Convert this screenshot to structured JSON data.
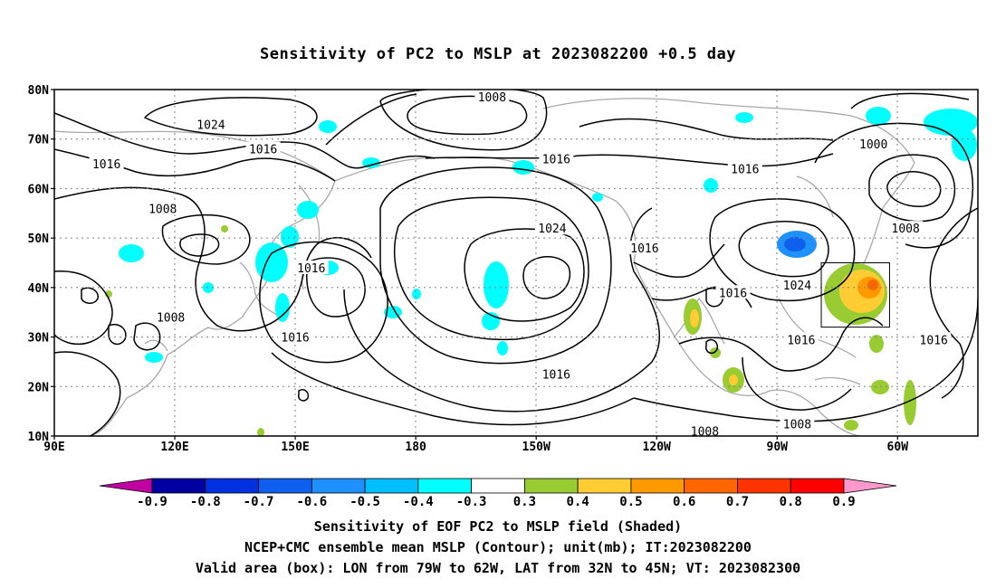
{
  "title": "Sensitivity of PC2 to MSLP at 2023082200 +0.5 day",
  "map": {
    "lat_ticks": [
      "80N",
      "70N",
      "60N",
      "50N",
      "40N",
      "30N",
      "20N",
      "10N"
    ],
    "lon_ticks": [
      "90E",
      "120E",
      "150E",
      "180",
      "150W",
      "120W",
      "90W",
      "60W"
    ],
    "lon_range_deg_east": [
      90,
      320
    ],
    "lat_range_deg": [
      10,
      80
    ],
    "grid": "dotted",
    "contour_labels": [
      {
        "text": "1008",
        "lon": -161,
        "lat": 78.5
      },
      {
        "text": "1024",
        "lon": 129,
        "lat": 73
      },
      {
        "text": "1016",
        "lon": 103,
        "lat": 65
      },
      {
        "text": "1016",
        "lon": 142,
        "lat": 68
      },
      {
        "text": "1016",
        "lon": -145,
        "lat": 66
      },
      {
        "text": "1016",
        "lon": -98,
        "lat": 64
      },
      {
        "text": "1000",
        "lon": -66,
        "lat": 69
      },
      {
        "text": "1008",
        "lon": -58,
        "lat": 52
      },
      {
        "text": "1008",
        "lon": 117,
        "lat": 56
      },
      {
        "text": "1024",
        "lon": -146,
        "lat": 52
      },
      {
        "text": "1016",
        "lon": -123,
        "lat": 48
      },
      {
        "text": "1016",
        "lon": 154,
        "lat": 44
      },
      {
        "text": "1016",
        "lon": -101,
        "lat": 39
      },
      {
        "text": "1024",
        "lon": -85,
        "lat": 40.5
      },
      {
        "text": "1008",
        "lon": 119,
        "lat": 34
      },
      {
        "text": "1016",
        "lon": 150,
        "lat": 30
      },
      {
        "text": "1016",
        "lon": -84,
        "lat": 29.5
      },
      {
        "text": "1016",
        "lon": -51,
        "lat": 29.5
      },
      {
        "text": "1016",
        "lon": -145,
        "lat": 22.5
      },
      {
        "text": "1008",
        "lon": -108,
        "lat": 11
      },
      {
        "text": "1008",
        "lon": -85,
        "lat": 12.5
      }
    ],
    "valid_box": {
      "lon_west": -79,
      "lon_east": -62,
      "lat_south": 32,
      "lat_north": 45
    }
  },
  "colorbar": {
    "labels": [
      "-0.9",
      "-0.8",
      "-0.7",
      "-0.6",
      "-0.5",
      "-0.4",
      "-0.3",
      "0.3",
      "0.4",
      "0.5",
      "0.6",
      "0.7",
      "0.8",
      "0.9"
    ],
    "colors": [
      "#0000a0",
      "#0030e0",
      "#1060f0",
      "#1e90ff",
      "#00bfff",
      "#00ffff",
      "#ffffff",
      "#99cc33",
      "#ffcc33",
      "#ff9900",
      "#ff6600",
      "#ff3300",
      "#ff0000"
    ],
    "low_end_color": "#c000a0",
    "high_end_color": "#ff99cc"
  },
  "captions": [
    "Sensitivity of EOF PC2 to MSLP field (Shaded)",
    "NCEP+CMC ensemble mean MSLP (Contour); unit(mb); IT:2023082200",
    "Valid area (box): LON from 79W to 62W, LAT from 32N to 45N; VT: 2023082300"
  ]
}
